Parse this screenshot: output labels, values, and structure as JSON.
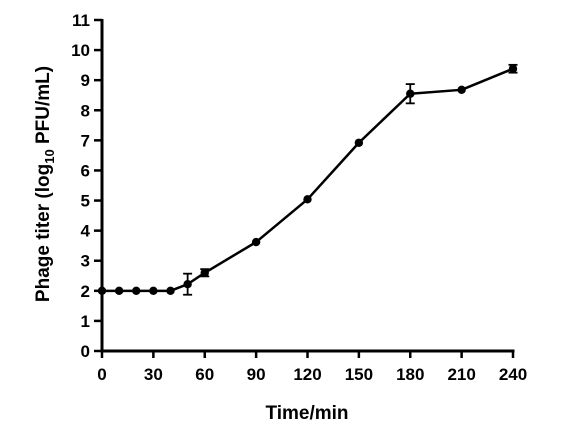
{
  "chart_data": {
    "type": "line",
    "title": "",
    "xlabel": "Time/min",
    "ylabel": {
      "prefix": "Phage titer (log",
      "subscript": "10",
      "suffix": " PFU/mL)"
    },
    "xlim": [
      0,
      240
    ],
    "ylim": [
      0,
      11
    ],
    "xticks": [
      0,
      30,
      60,
      90,
      120,
      150,
      180,
      210,
      240
    ],
    "yticks": [
      0,
      1,
      2,
      3,
      4,
      5,
      6,
      7,
      8,
      9,
      10,
      11
    ],
    "grid": false,
    "legend": "none",
    "series": [
      {
        "x": [
          0,
          10,
          20,
          30,
          40,
          50,
          60,
          90,
          120,
          150,
          180,
          210,
          240
        ],
        "y": [
          2.0,
          2.0,
          2.0,
          2.0,
          2.0,
          2.22,
          2.6,
          3.62,
          5.04,
          6.92,
          8.55,
          8.68,
          9.38
        ],
        "err": [
          0,
          0,
          0,
          0,
          0,
          0.35,
          0.12,
          0,
          0,
          0,
          0.32,
          0,
          0.13
        ]
      }
    ],
    "colors": {
      "line": "#000000",
      "marker": "#000000"
    }
  }
}
